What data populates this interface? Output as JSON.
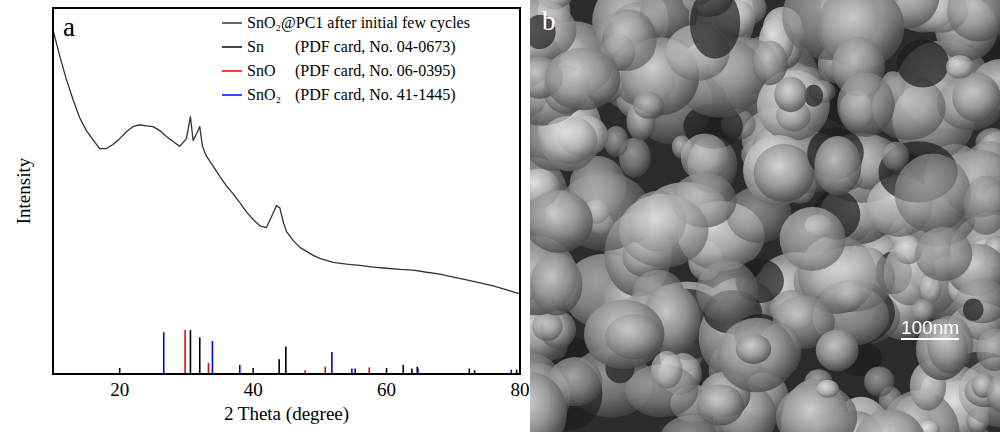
{
  "chart_data": {
    "type": "line",
    "panel_label": "a",
    "x_label": "2 Theta (degree)",
    "y_label": "Intensity",
    "xlim": [
      10,
      80
    ],
    "xticks": [
      20,
      40,
      60,
      80
    ],
    "ylim": [
      0,
      100
    ],
    "tick_labels": "x",
    "grid": false,
    "legend": "top-right",
    "series": [
      {
        "name": "SnO₂@PC1 after initial few cycles",
        "type": "line",
        "color": "#333333",
        "x": [
          10,
          11,
          12,
          13,
          14,
          15,
          16,
          17,
          18,
          19,
          20,
          21,
          22,
          23,
          24,
          25,
          26,
          27,
          28,
          29,
          30,
          30.6,
          31,
          31.6,
          32,
          32.4,
          33,
          34,
          35,
          36,
          37,
          38,
          39,
          40,
          41,
          42,
          43,
          43.5,
          44,
          44.5,
          45,
          46,
          47,
          48,
          49,
          50,
          52,
          54,
          56,
          58,
          60,
          62,
          64,
          66,
          68,
          70,
          72,
          74,
          76,
          78,
          80
        ],
        "values": [
          94,
          87,
          80.5,
          75,
          70,
          66.5,
          64,
          61.6,
          61.6,
          62.7,
          64.3,
          66.2,
          67.6,
          68.1,
          67.8,
          67.6,
          66.5,
          64.9,
          63.5,
          62.2,
          64.3,
          70.3,
          63.8,
          66,
          67.6,
          62.2,
          59.5,
          56.8,
          54,
          51.4,
          49.2,
          46.8,
          44.3,
          42.2,
          40.5,
          40,
          44,
          46,
          45.4,
          41.6,
          38.9,
          36.5,
          34.6,
          33.5,
          32.4,
          31.6,
          30.5,
          30,
          29.7,
          29.2,
          28.9,
          28.6,
          28.4,
          27.8,
          27.3,
          26.5,
          25.7,
          24.9,
          24.1,
          23,
          21.9
        ]
      },
      {
        "name": "Sn",
        "pdf_card": "(PDF card, No. 04-0673)",
        "type": "stick",
        "color": "#000000",
        "x": [
          30.6,
          32.0,
          43.9,
          44.9,
          55.3,
          62.5,
          63.8,
          64.6,
          72.4,
          73.2,
          79.5
        ],
        "values": [
          12,
          10,
          4,
          7.5,
          1.5,
          2.5,
          1.5,
          2,
          1.5,
          1,
          1.2
        ]
      },
      {
        "name": "SnO",
        "pdf_card": "(PDF card, No. 06-0395)",
        "type": "stick",
        "color": "#ff0000",
        "x": [
          29.8,
          33.3,
          47.8,
          50.8,
          57.4
        ],
        "values": [
          12,
          3,
          1,
          2,
          1.8
        ]
      },
      {
        "name": "SnO₂",
        "pdf_card": "(PDF card, No. 41-1445)",
        "type": "stick",
        "color": "#0000ff",
        "x": [
          26.6,
          33.9,
          38.0,
          51.8,
          54.8,
          64.7,
          78.7
        ],
        "values": [
          11.4,
          9,
          2.5,
          6,
          1.5,
          1.5,
          1.2
        ]
      }
    ]
  },
  "image_panel": {
    "panel_label": "b",
    "scale_bar_label": "100nm"
  }
}
